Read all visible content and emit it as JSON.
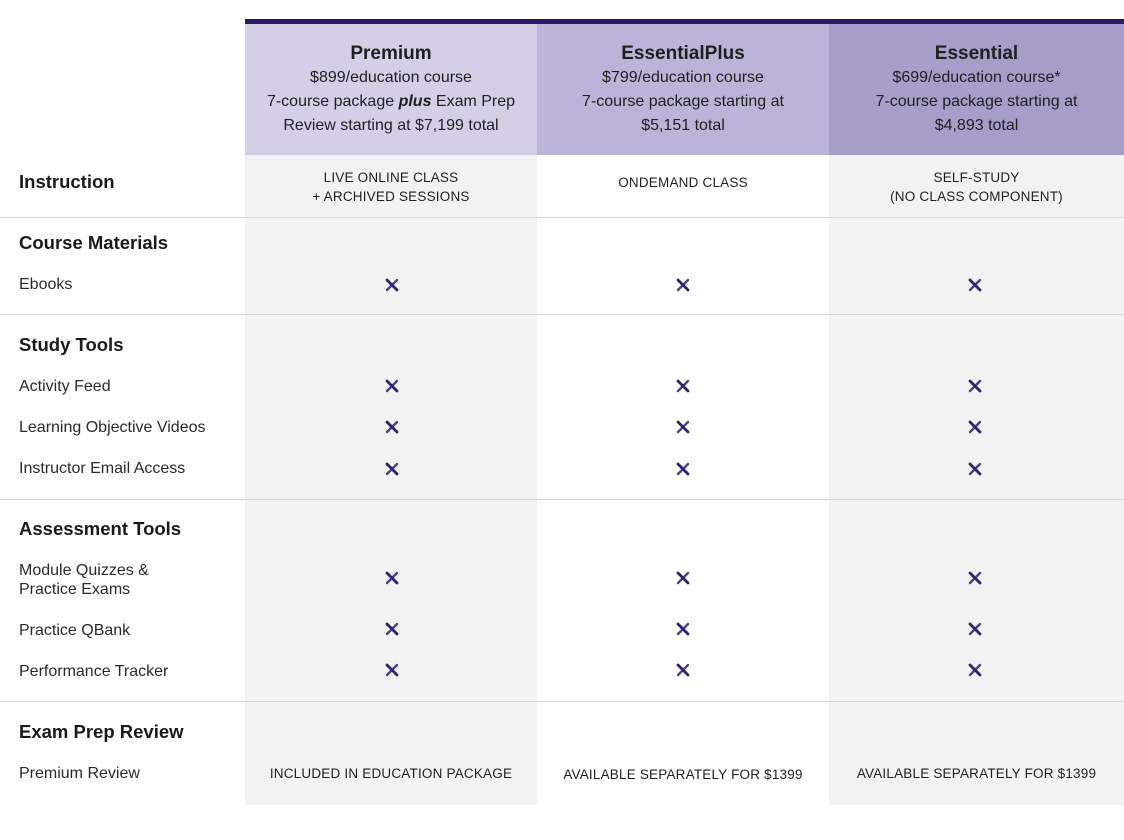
{
  "plans": [
    {
      "name": "Premium",
      "price": "$899/education course",
      "package_pre": "7-course package ",
      "package_em": "plus",
      "package_post": " Exam Prep",
      "package_line2": "Review starting at $7,199 total",
      "header_color": "#d4cfe6"
    },
    {
      "name": "EssentialPlus",
      "price": "$799/education course",
      "package_line1": "7-course package starting at",
      "package_line2": "$5,151 total",
      "header_color": "#bcb4d8"
    },
    {
      "name": "Essential",
      "price": "$699/education course*",
      "package_line1": "7-course package starting at",
      "package_line2": "$4,893 total",
      "header_color": "#a69dc9"
    }
  ],
  "instruction": {
    "label": "Instruction",
    "premium": [
      "LIVE ONLINE CLASS",
      "+ ARCHIVED SESSIONS"
    ],
    "essentialplus": "ONDEMAND CLASS",
    "essential": [
      "SELF-STUDY",
      "(NO CLASS COMPONENT)"
    ]
  },
  "sections": {
    "course_materials": "Course Materials",
    "study_tools": "Study Tools",
    "assessment_tools": "Assessment Tools",
    "exam_prep_review": "Exam Prep Review"
  },
  "features": {
    "ebooks": "Ebooks",
    "activity_feed": "Activity Feed",
    "lo_videos": "Learning Objective Videos",
    "email_access": "Instructor Email Access",
    "quizzes_line1": "Module Quizzes &",
    "quizzes_line2": "Practice Exams",
    "qbank": "Practice QBank",
    "tracker": "Performance Tracker",
    "premium_review": "Premium Review"
  },
  "premium_review_values": {
    "premium": "INCLUDED IN EDUCATION PACKAGE",
    "essentialplus": "AVAILABLE SEPARATELY FOR $1399",
    "essential": "AVAILABLE SEPARATELY FOR $1399"
  },
  "colors": {
    "accent": "#2a1a66",
    "check_mark": "#2f2270",
    "column_bg": "#f2f2f2"
  },
  "icons": {
    "included": "x-mark-icon"
  }
}
